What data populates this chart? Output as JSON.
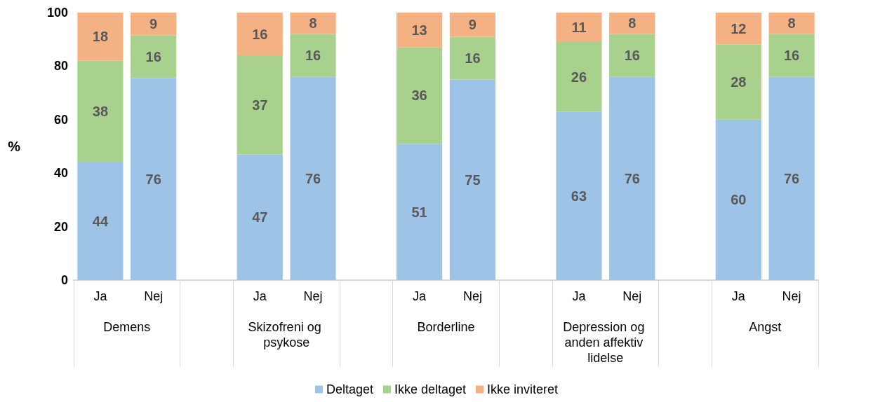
{
  "chart_data": {
    "type": "bar",
    "stacked": true,
    "ylabel": "%",
    "ylim": [
      0,
      100
    ],
    "yticks": [
      0,
      20,
      40,
      60,
      80,
      100
    ],
    "grid": false,
    "legend": "bottom",
    "categories": [
      "Ja",
      "Nej",
      null,
      "Ja",
      "Nej",
      null,
      "Ja",
      "Nej",
      null,
      "Ja",
      "Nej",
      null,
      "Ja",
      "Nej"
    ],
    "annotations": [
      "Demens",
      "Skizofreni og psykose",
      "Borderline",
      "Depression og anden affektiv lidelse",
      "Angst"
    ],
    "series": [
      {
        "name": "Deltaget",
        "color": "#9dc3e6",
        "values": [
          44,
          75.5,
          null,
          47,
          76,
          null,
          51,
          75,
          null,
          63,
          76,
          null,
          60,
          76
        ],
        "value_labels": [
          "44",
          "76",
          null,
          "47",
          "76",
          null,
          "51",
          "75",
          null,
          "63",
          "76",
          null,
          "60",
          "76"
        ]
      },
      {
        "name": "Ikke deltaget",
        "color": "#a9d18e",
        "values": [
          38,
          16,
          null,
          37,
          16,
          null,
          36,
          16,
          null,
          26,
          16,
          null,
          28,
          16
        ],
        "value_labels": [
          "38",
          "16",
          null,
          "37",
          "16",
          null,
          "36",
          "16",
          null,
          "26",
          "16",
          null,
          "28",
          "16"
        ]
      },
      {
        "name": "Ikke inviteret",
        "color": "#f4b183",
        "values": [
          18,
          8.5,
          null,
          16,
          8,
          null,
          13,
          9,
          null,
          11,
          8,
          null,
          12,
          8
        ],
        "value_labels": [
          "18",
          "9",
          null,
          "16",
          "8",
          null,
          "13",
          "9",
          null,
          "11",
          "8",
          null,
          "12",
          "8"
        ]
      }
    ]
  }
}
